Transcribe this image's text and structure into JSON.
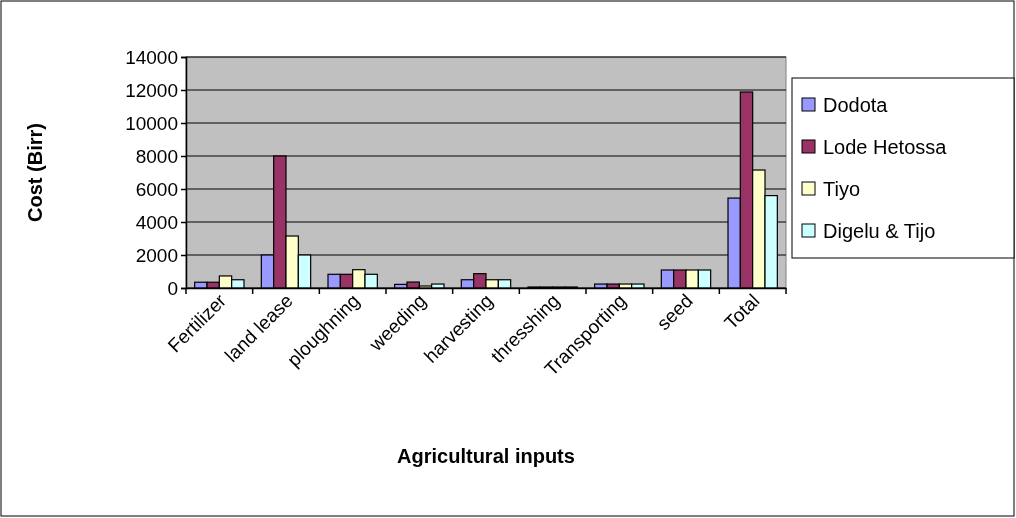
{
  "chart_data": {
    "type": "bar",
    "xlabel": "Agricultural inputs",
    "ylabel": "Cost (Birr)",
    "categories": [
      "Fertilizer",
      "land lease",
      "ploughning",
      "weeding",
      "harvesting",
      "thresshing",
      "Transporting",
      "seed",
      "Total"
    ],
    "series": [
      {
        "name": "Dodota",
        "color": "#9999ff",
        "values": [
          350,
          2000,
          830,
          220,
          500,
          60,
          240,
          1090,
          5450
        ]
      },
      {
        "name": "Lode Hetossa",
        "color": "#993366",
        "values": [
          350,
          8000,
          830,
          360,
          870,
          60,
          240,
          1090,
          11880
        ]
      },
      {
        "name": "Tiyo",
        "color": "#ffffcc",
        "values": [
          730,
          3150,
          1110,
          120,
          500,
          60,
          240,
          1090,
          7150
        ]
      },
      {
        "name": "Digelu & Tijo",
        "color": "#ccffff",
        "values": [
          500,
          2000,
          830,
          240,
          500,
          60,
          240,
          1090,
          5600
        ]
      }
    ],
    "ylim": [
      0,
      14000
    ],
    "yticks": [
      0,
      2000,
      4000,
      6000,
      8000,
      10000,
      12000,
      14000
    ],
    "grid": "y",
    "legend": "right"
  }
}
